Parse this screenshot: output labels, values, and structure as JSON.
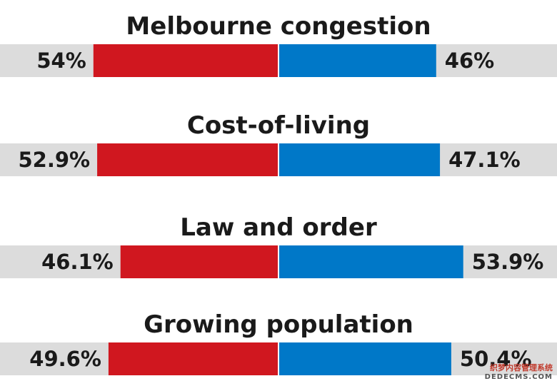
{
  "chart_data": {
    "type": "bar",
    "orientation": "horizontal-diverging",
    "max_value": 100,
    "colors": {
      "left": "#d0171f",
      "right": "#0078c8",
      "track": "#dcdcdc"
    },
    "groups": [
      {
        "title": "Melbourne congestion",
        "left": 54,
        "left_label": "54%",
        "right": 46,
        "right_label": "46%"
      },
      {
        "title": "Cost-of-living",
        "left": 52.9,
        "left_label": "52.9%",
        "right": 47.1,
        "right_label": "47.1%"
      },
      {
        "title": "Law and order",
        "left": 46.1,
        "left_label": "46.1%",
        "right": 53.9,
        "right_label": "53.9%"
      },
      {
        "title": "Growing population",
        "left": 49.6,
        "left_label": "49.6%",
        "right": 50.4,
        "right_label": "50.4%"
      }
    ]
  },
  "watermark": {
    "line1": "织梦内容管理系统",
    "line2": "DEDECMS.COM"
  }
}
